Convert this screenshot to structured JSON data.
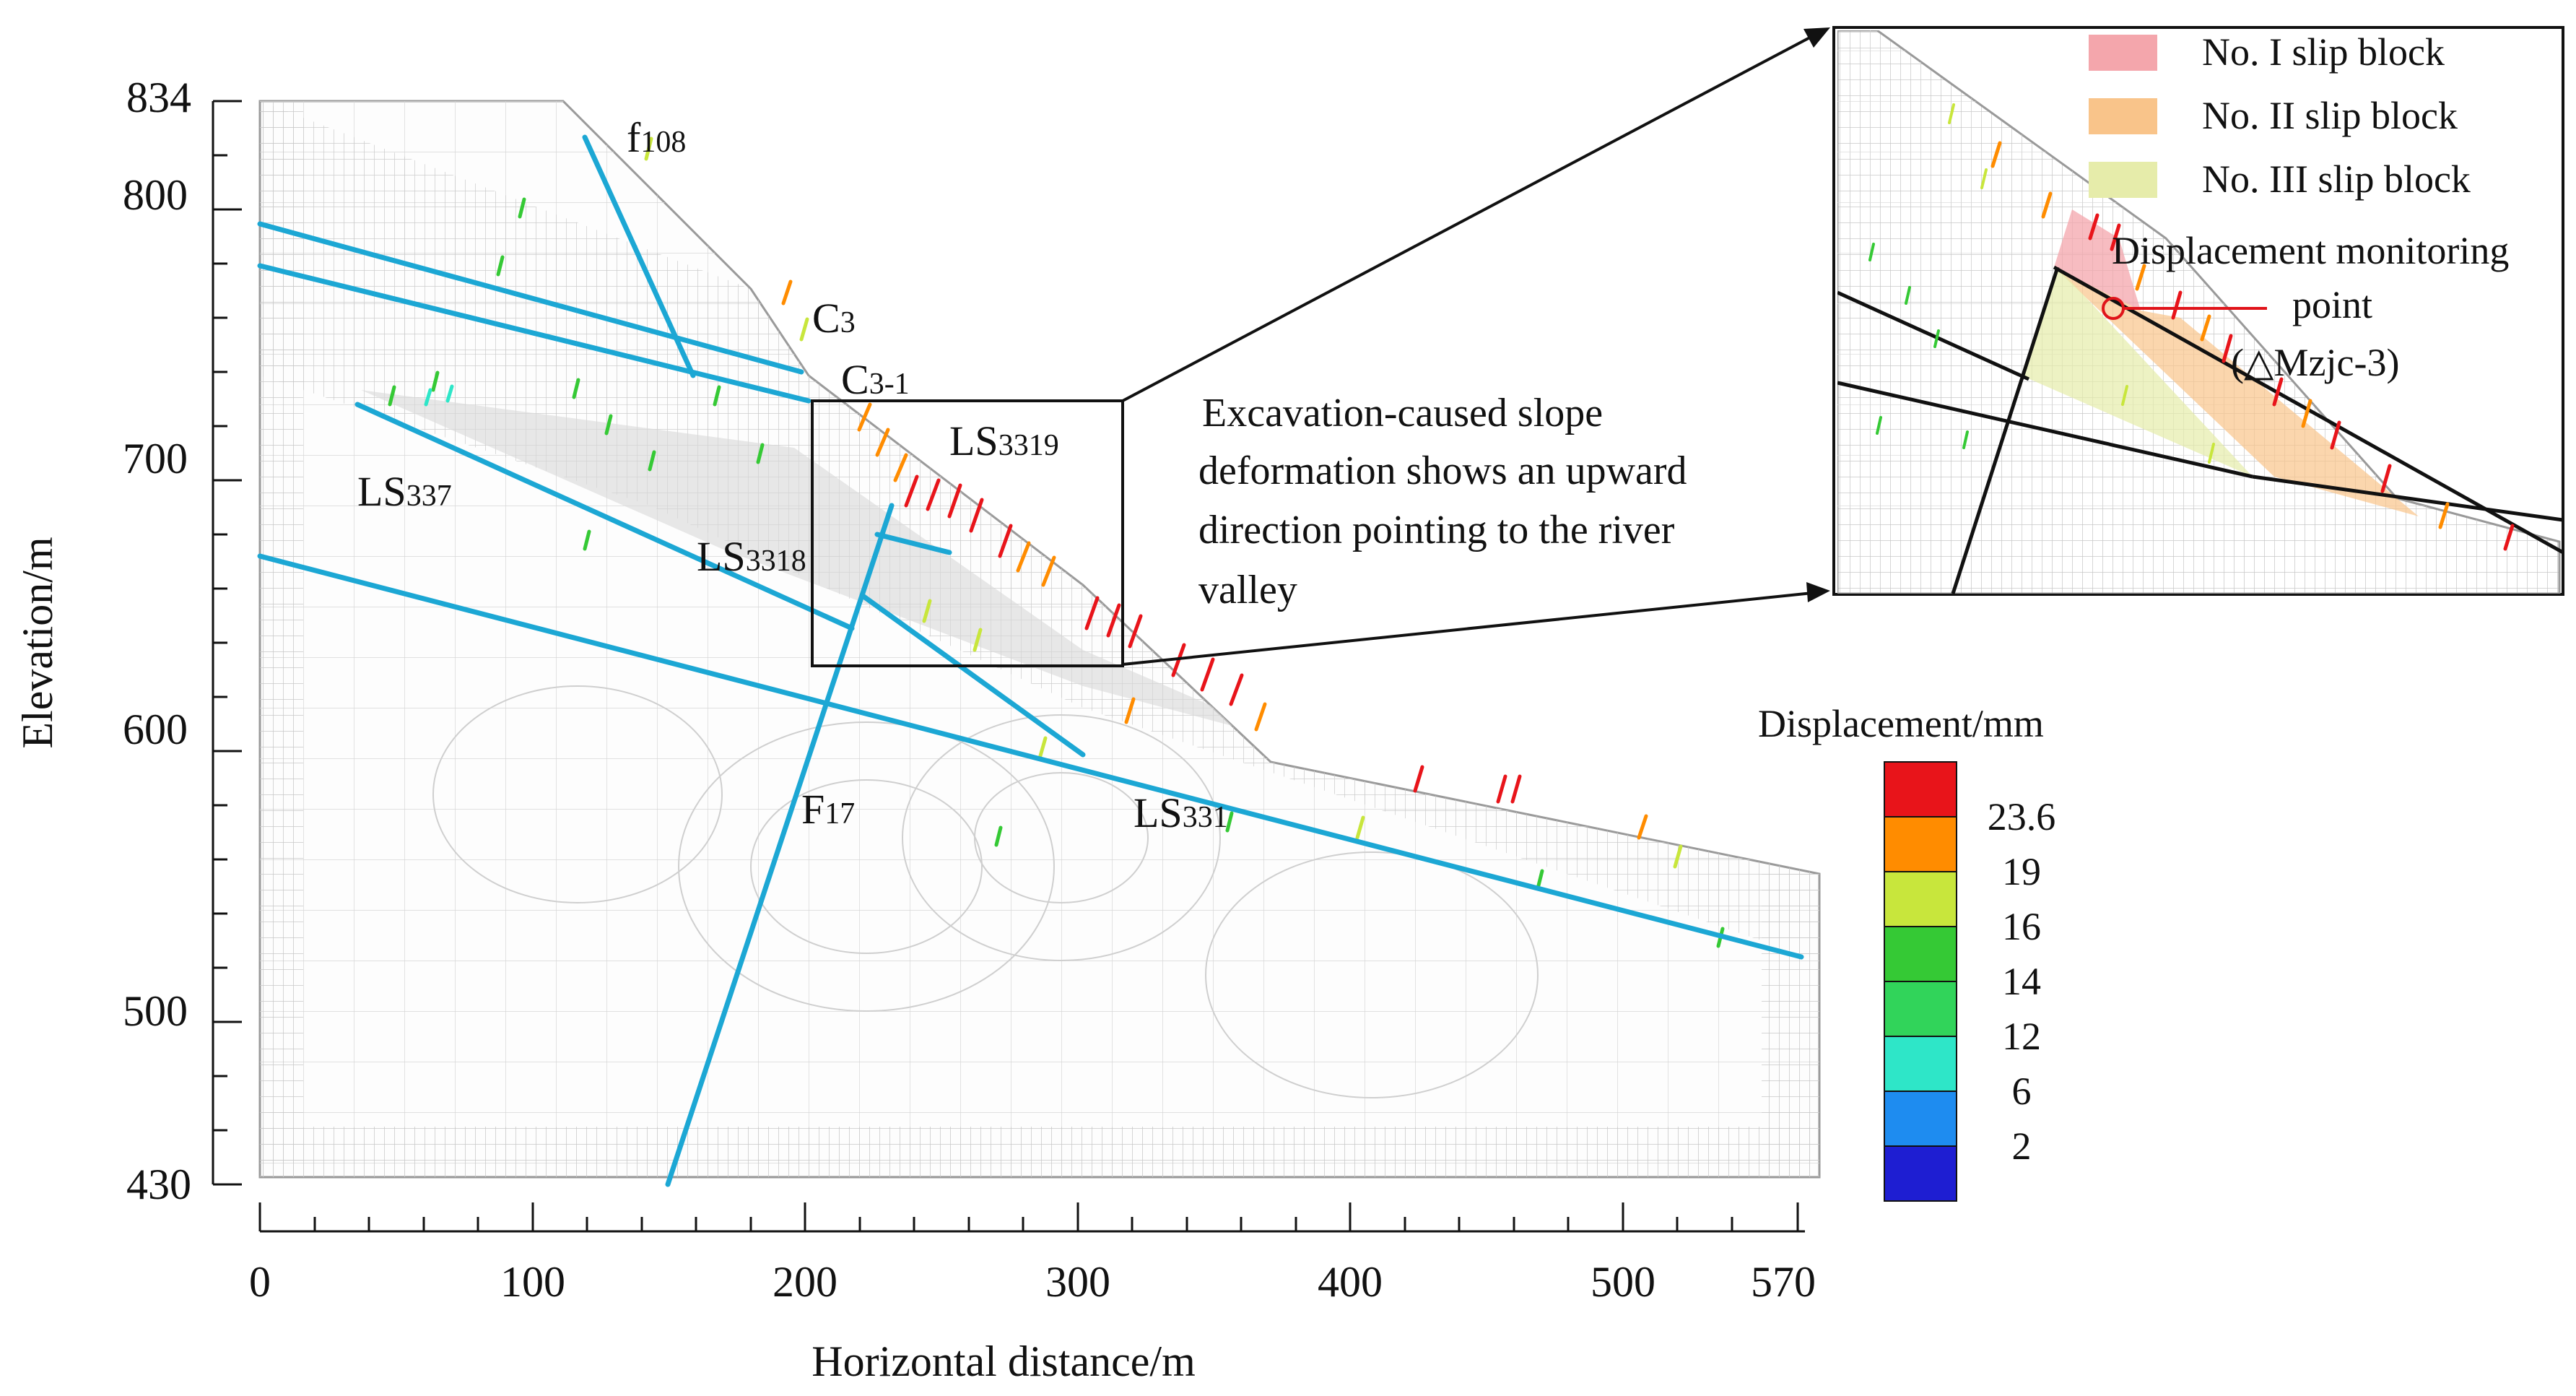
{
  "figure": {
    "x_axis": {
      "label": "Horizontal distance/m",
      "tick_labels": [
        "0",
        "100",
        "200",
        "300",
        "400",
        "500",
        "570"
      ],
      "range": [
        0,
        570
      ]
    },
    "y_axis": {
      "label": "Elevation/m",
      "tick_labels": [
        "834",
        "800",
        "700",
        "600",
        "500",
        "430"
      ],
      "range": [
        430,
        834
      ]
    },
    "fault_labels": {
      "f108": {
        "main": "f",
        "sub": "108"
      },
      "c3": {
        "main": "C",
        "sub": "3"
      },
      "c3_1": {
        "main": "C",
        "sub": "3-1"
      },
      "ls3319": {
        "main": "LS",
        "sub": "3319"
      },
      "ls337": {
        "main": "LS",
        "sub": "337"
      },
      "ls3318": {
        "main": "LS",
        "sub": "3318"
      },
      "f17": {
        "main": "F",
        "sub": "17"
      },
      "ls331": {
        "main": "LS",
        "sub": "331"
      }
    },
    "annotation": {
      "lines": [
        "Excavation-caused slope",
        "deformation shows an upward",
        "direction pointing to the river",
        "valley"
      ]
    },
    "colorbar": {
      "title": "Displacement/mm",
      "tick_labels": [
        "23.6",
        "19",
        "16",
        "14",
        "12",
        "6",
        "2"
      ],
      "colors": [
        "#e8141a",
        "#ff8c00",
        "#c8e63c",
        "#35c935",
        "#31d45a",
        "#2ee6c8",
        "#1e8cf0",
        "#1e1ed2"
      ]
    },
    "inset": {
      "legend": [
        {
          "label": "No. I slip block",
          "color": "#f4a6ac"
        },
        {
          "label": "No. II slip block",
          "color": "#f9c48a"
        },
        {
          "label": "No. III slip block",
          "color": "#e6ecaa"
        }
      ],
      "monitor_label_lines": [
        "Displacement monitoring",
        "point",
        "(△Mzjc-3)"
      ]
    },
    "colors": {
      "fault_line": "#1ca7d4",
      "mesh": "#c6c6c6",
      "box": "#111111",
      "monitor": "#e0141a"
    }
  }
}
